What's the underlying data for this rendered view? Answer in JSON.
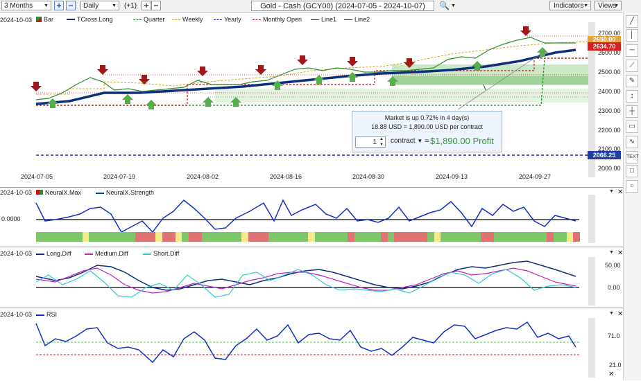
{
  "toolbar": {
    "range": "3 Months",
    "interval": "Daily",
    "offset": "(+1)",
    "title": "Gold - Cash (GCY00) (2024-07-05 - 2024-10-07)",
    "indicators": "Indicators",
    "views": "Views"
  },
  "main": {
    "date_label": "2024-10-03",
    "legend": [
      {
        "name": "Bar",
        "color": "#2e8b2e",
        "style": "bar"
      },
      {
        "name": "TCross.Long",
        "color": "#0b2f7a",
        "style": "solid"
      },
      {
        "name": "Quarter",
        "color": "#1a8a1a",
        "style": "dashed"
      },
      {
        "name": "Weekly",
        "color": "#e0a020",
        "style": "dashed"
      },
      {
        "name": "Yearly",
        "color": "#1c1cb0",
        "style": "dashed"
      },
      {
        "name": "Monthly Open",
        "color": "#c01818",
        "style": "dashed"
      },
      {
        "name": "Line1",
        "color": "#333333",
        "style": "solid"
      },
      {
        "name": "Line2",
        "color": "#333333",
        "style": "solid"
      }
    ],
    "y_ticks": [
      "2700.00",
      "2600.00",
      "2500.00",
      "2400.00",
      "2300.00",
      "2200.00",
      "2100.00",
      "2000.00"
    ],
    "x_ticks": [
      "2024-07-05",
      "2024-07-19",
      "2024-08-02",
      "2024-08-16",
      "2024-08-30",
      "2024-09-13",
      "2024-09-27"
    ],
    "tags": [
      {
        "label": "2650.00",
        "color": "#e8a43a"
      },
      {
        "label": "2634.70",
        "color": "#d81e1e"
      },
      {
        "label": "2066.25",
        "color": "#1f3fa8"
      }
    ],
    "popup": {
      "line1": "Market is up 0.72% in 4 day(s)",
      "line2": "18.88 USD = 1,890.00 USD per contract",
      "qty": "1",
      "unit": "contract",
      "equals": "=",
      "profit": "$1,890.00 Profit"
    }
  },
  "neural": {
    "date_label": "2024-10-03",
    "legend": [
      {
        "name": "NeuralX.Max",
        "color": "#c01818"
      },
      {
        "name": "NeuralX.Strength",
        "color": "#1030c0"
      }
    ],
    "y_tick": "0.0000"
  },
  "diff": {
    "date_label": "2024-10-03",
    "legend": [
      {
        "name": "Long.Diff",
        "color": "#0b2f7a"
      },
      {
        "name": "Medium.Diff",
        "color": "#c020c0"
      },
      {
        "name": "Short.Diff",
        "color": "#30c8d8"
      }
    ],
    "y_ticks": [
      "50.00",
      "0.00"
    ]
  },
  "rsi": {
    "date_label": "2024-10-03",
    "legend": [
      {
        "name": "RSI",
        "color": "#1030c0"
      }
    ],
    "y_ticks": [
      "71.0",
      "21.0"
    ]
  },
  "right_tools": [
    "pen-tool",
    "vertical-line-tool",
    "horizontal-line-tool",
    "trend-line-tool",
    "pencil-tool",
    "arrow-tool",
    "crosshair-tool",
    "fib-tool",
    "text-tool",
    "square-tool",
    "circle-tool"
  ]
}
